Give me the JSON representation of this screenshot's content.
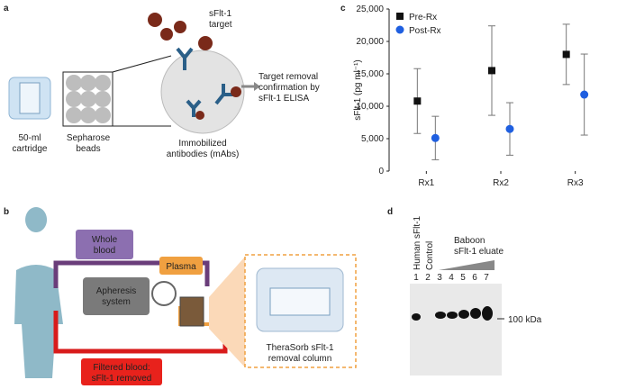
{
  "labels": {
    "a": "a",
    "b": "b",
    "c": "c",
    "d": "d"
  },
  "panel_a": {
    "target": [
      "sFlt-1",
      "target"
    ],
    "cartridge": [
      "50-ml",
      "cartridge"
    ],
    "beads": [
      "Sepharose",
      "beads"
    ],
    "antibodies": [
      "Immobilized",
      "antibodies (mAbs)"
    ],
    "confirmation": [
      "Target removal",
      "confirmation by",
      "sFlt-1 ELISA"
    ]
  },
  "panel_b": {
    "whole_blood": [
      "Whole",
      "blood"
    ],
    "apheresis": [
      "Apheresis",
      "system"
    ],
    "plasma": [
      "Plasma"
    ],
    "filtered": [
      "Filtered blood:",
      "sFlt-1 removed"
    ],
    "column": [
      "TheraSorb sFlt-1",
      "removal column"
    ]
  },
  "chart_data": {
    "type": "dot",
    "y_label": "sFlt-1 (pg ml⁻¹)",
    "categories": [
      "Rx1",
      "Rx2",
      "Rx3"
    ],
    "series": [
      {
        "name": "Pre-Rx",
        "color": "#111111",
        "marker": "square",
        "values": [
          10800,
          15500,
          18000
        ],
        "errors": [
          5000,
          6900,
          4650
        ]
      },
      {
        "name": "Post-Rx",
        "color": "#1f5fe0",
        "marker": "circle",
        "values": [
          5100,
          6500,
          11800
        ],
        "errors": [
          3350,
          4050,
          6250
        ]
      }
    ],
    "ylim": [
      0,
      25000
    ],
    "yticks": [
      0,
      {
        "value": 5000,
        "label": "5,000"
      },
      {
        "value": 10000,
        "label": "10,000"
      },
      {
        "value": 15000,
        "label": "15,000"
      },
      {
        "value": 20000,
        "label": "20,000"
      },
      {
        "value": 25000,
        "label": "25,000"
      }
    ],
    "legend": "upper left"
  },
  "panel_d": {
    "lanes": [
      "Human sFlt-1",
      "Control"
    ],
    "eluate": [
      "Baboon",
      "sFlt-1 eluate"
    ],
    "lane_numbers": [
      "1",
      "2",
      "3",
      "4",
      "5",
      "6",
      "7"
    ],
    "marker": [
      "100 kDa"
    ]
  }
}
